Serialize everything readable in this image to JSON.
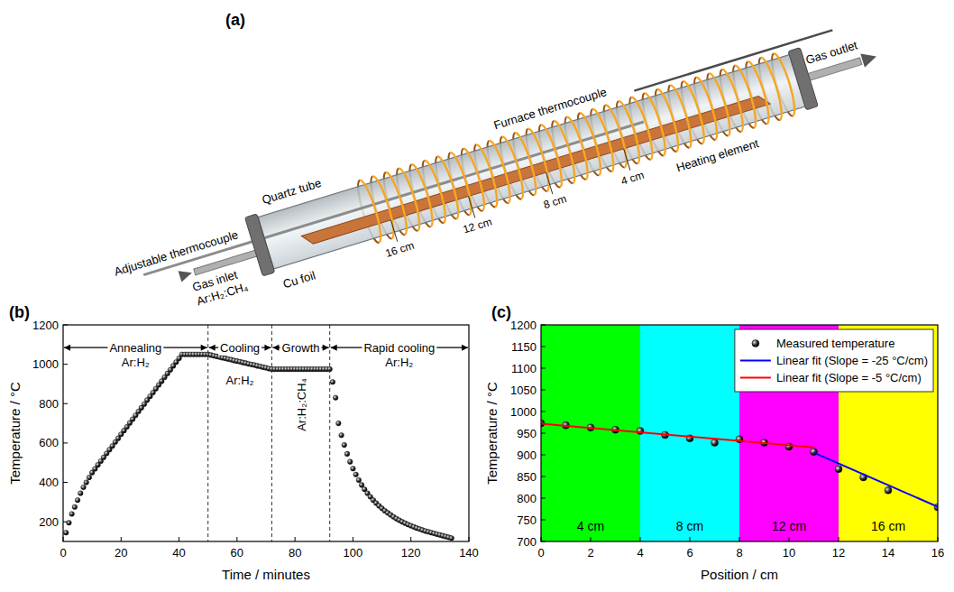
{
  "diagram": {
    "title": "(a)",
    "labels": {
      "furnace_thermocouple": "Furnace thermocouple",
      "quartz_tube": "Quartz tube",
      "gas_outlet": "Gas outlet",
      "heating_element": "Heating element",
      "adjustable_thermocouple": "Adjustable thermocouple",
      "gas_inlet": "Gas inlet",
      "gas_mixture": "Ar:H₂:CH₄",
      "cu_foil": "Cu foil"
    },
    "positions": [
      "16 cm",
      "12 cm",
      "8 cm",
      "4 cm"
    ]
  },
  "chart_data": [
    {
      "type": "scatter",
      "title": "(b)",
      "xlabel": "Time / minutes",
      "ylabel": "Temperature / °C",
      "xlim": [
        0,
        140
      ],
      "ylim": [
        100,
        1200
      ],
      "xticks": [
        0,
        20,
        40,
        60,
        80,
        100,
        120,
        140
      ],
      "yticks": [
        200,
        400,
        600,
        800,
        1000,
        1200
      ],
      "grid": false,
      "phases": [
        {
          "label": "Annealing",
          "gas": "Ar:H₂",
          "start": 0,
          "end": 50
        },
        {
          "label": "Cooling",
          "gas": "Ar:H₂",
          "start": 50,
          "end": 72
        },
        {
          "label": "Growth",
          "gas": "Ar:H₂:CH₄",
          "start": 72,
          "end": 92
        },
        {
          "label": "Rapid cooling",
          "gas": "Ar:H₂",
          "start": 92,
          "end": 140
        }
      ],
      "x": [
        1,
        2,
        3,
        4,
        5,
        6,
        7,
        8,
        9,
        10,
        11,
        12,
        13,
        14,
        15,
        16,
        17,
        18,
        19,
        20,
        21,
        22,
        23,
        24,
        25,
        26,
        27,
        28,
        29,
        30,
        31,
        32,
        33,
        34,
        35,
        36,
        37,
        38,
        39,
        40,
        41,
        42,
        43,
        44,
        45,
        46,
        47,
        48,
        49,
        50,
        51,
        52,
        53,
        54,
        55,
        56,
        57,
        58,
        59,
        60,
        61,
        62,
        63,
        64,
        65,
        66,
        67,
        68,
        69,
        70,
        71,
        72,
        73,
        74,
        75,
        76,
        77,
        78,
        79,
        80,
        81,
        82,
        83,
        84,
        85,
        86,
        87,
        88,
        89,
        90,
        91,
        92,
        93,
        94,
        95,
        96,
        97,
        98,
        99,
        100,
        101,
        102,
        103,
        104,
        105,
        106,
        107,
        108,
        109,
        110,
        111,
        112,
        113,
        114,
        115,
        116,
        117,
        118,
        119,
        120,
        121,
        122,
        123,
        124,
        125,
        126,
        127,
        128,
        129,
        130,
        131,
        132,
        133,
        134
      ],
      "series": [
        {
          "color": "#2b2b2b",
          "marker": "circle",
          "values": [
            145,
            195,
            240,
            275,
            310,
            345,
            375,
            400,
            425,
            450,
            469,
            489,
            508,
            527,
            547,
            566,
            585,
            605,
            624,
            644,
            663,
            682,
            702,
            721,
            740,
            760,
            779,
            798,
            818,
            837,
            856,
            876,
            895,
            914,
            934,
            953,
            972,
            992,
            1011,
            1030,
            1050,
            1050,
            1050,
            1050,
            1050,
            1050,
            1050,
            1050,
            1050,
            1050,
            1047,
            1043,
            1040,
            1036,
            1033,
            1030,
            1026,
            1023,
            1019,
            1016,
            1013,
            1009,
            1006,
            1002,
            999,
            996,
            992,
            989,
            985,
            982,
            978,
            975,
            975,
            975,
            975,
            975,
            975,
            975,
            975,
            975,
            975,
            975,
            975,
            975,
            975,
            975,
            975,
            975,
            975,
            975,
            975,
            975,
            910,
            830,
            700,
            640,
            590,
            545,
            505,
            470,
            440,
            412,
            387,
            365,
            345,
            327,
            310,
            295,
            281,
            268,
            256,
            245,
            235,
            225,
            216,
            208,
            200,
            193,
            186,
            180,
            174,
            168,
            163,
            158,
            153,
            149,
            145,
            141,
            137,
            133,
            129,
            125,
            121,
            117
          ]
        }
      ]
    },
    {
      "type": "scatter",
      "title": "(c)",
      "xlabel": "Position / cm",
      "ylabel": "Temperature / °C",
      "xlim": [
        0,
        16
      ],
      "ylim": [
        700,
        1200
      ],
      "xticks": [
        0,
        2,
        4,
        6,
        8,
        10,
        12,
        14,
        16
      ],
      "yticks": [
        700,
        750,
        800,
        850,
        900,
        950,
        1000,
        1050,
        1100,
        1150,
        1200
      ],
      "grid": false,
      "legend": "upper right",
      "regions": [
        {
          "label": "4 cm",
          "start": 0,
          "end": 4,
          "color": "#00ff00"
        },
        {
          "label": "8 cm",
          "start": 4,
          "end": 8,
          "color": "#00ffff"
        },
        {
          "label": "12 cm",
          "start": 8,
          "end": 12,
          "color": "#ff00ff"
        },
        {
          "label": "16 cm",
          "start": 12,
          "end": 16,
          "color": "#ffff00"
        }
      ],
      "series": [
        {
          "name": "Measured temperature",
          "type": "scatter",
          "marker": "circle",
          "color": "#2b2b2b",
          "x": [
            0,
            1,
            2,
            3,
            4,
            5,
            6,
            7,
            8,
            9,
            10,
            11,
            12,
            13,
            14,
            16
          ],
          "values": [
            973,
            968,
            963,
            958,
            955,
            946,
            938,
            928,
            936,
            928,
            919,
            907,
            867,
            848,
            818,
            779
          ]
        },
        {
          "name": "Linear fit (Slope = -25 °C/cm)",
          "type": "line",
          "line_style": "solid",
          "color": "#0000ff",
          "x": [
            11,
            16
          ],
          "values": [
            905,
            780
          ]
        },
        {
          "name": "Linear fit (Slope = -5 °C/cm)",
          "type": "line",
          "line_style": "solid",
          "color": "#ff0000",
          "x": [
            0,
            11
          ],
          "values": [
            972,
            917
          ]
        }
      ]
    }
  ]
}
